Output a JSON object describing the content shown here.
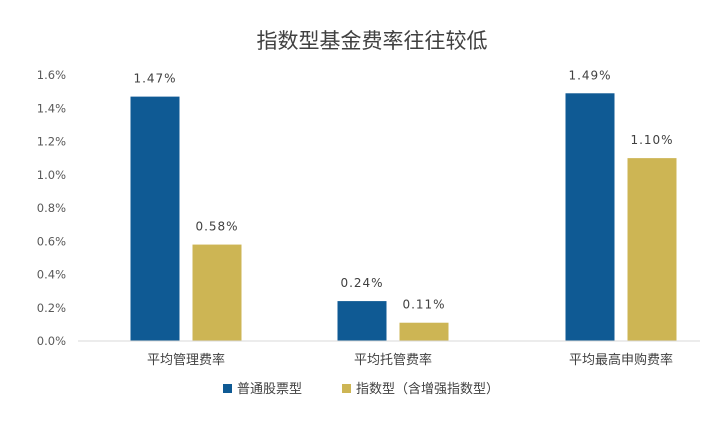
{
  "chart_data": {
    "type": "bar",
    "title": "指数型基金费率往往较低",
    "categories": [
      "平均管理费率",
      "平均托管费率",
      "平均最高申购费率"
    ],
    "series": [
      {
        "name": "普通股票型",
        "values": [
          1.47,
          0.24,
          1.49
        ],
        "labels": [
          "1.47%",
          "0.24%",
          "1.49%"
        ],
        "color": "#0F5A94"
      },
      {
        "name": "指数型（含增强指数型）",
        "values": [
          0.58,
          0.11,
          1.1
        ],
        "labels": [
          "0.58%",
          "0.11%",
          "1.10%"
        ],
        "color": "#CDB554"
      }
    ],
    "ylim": [
      0,
      1.6
    ],
    "yticks": [
      "0.0%",
      "0.2%",
      "0.4%",
      "0.6%",
      "0.8%",
      "1.0%",
      "1.2%",
      "1.4%",
      "1.6%"
    ],
    "grid": false,
    "legend_position": "bottom"
  }
}
